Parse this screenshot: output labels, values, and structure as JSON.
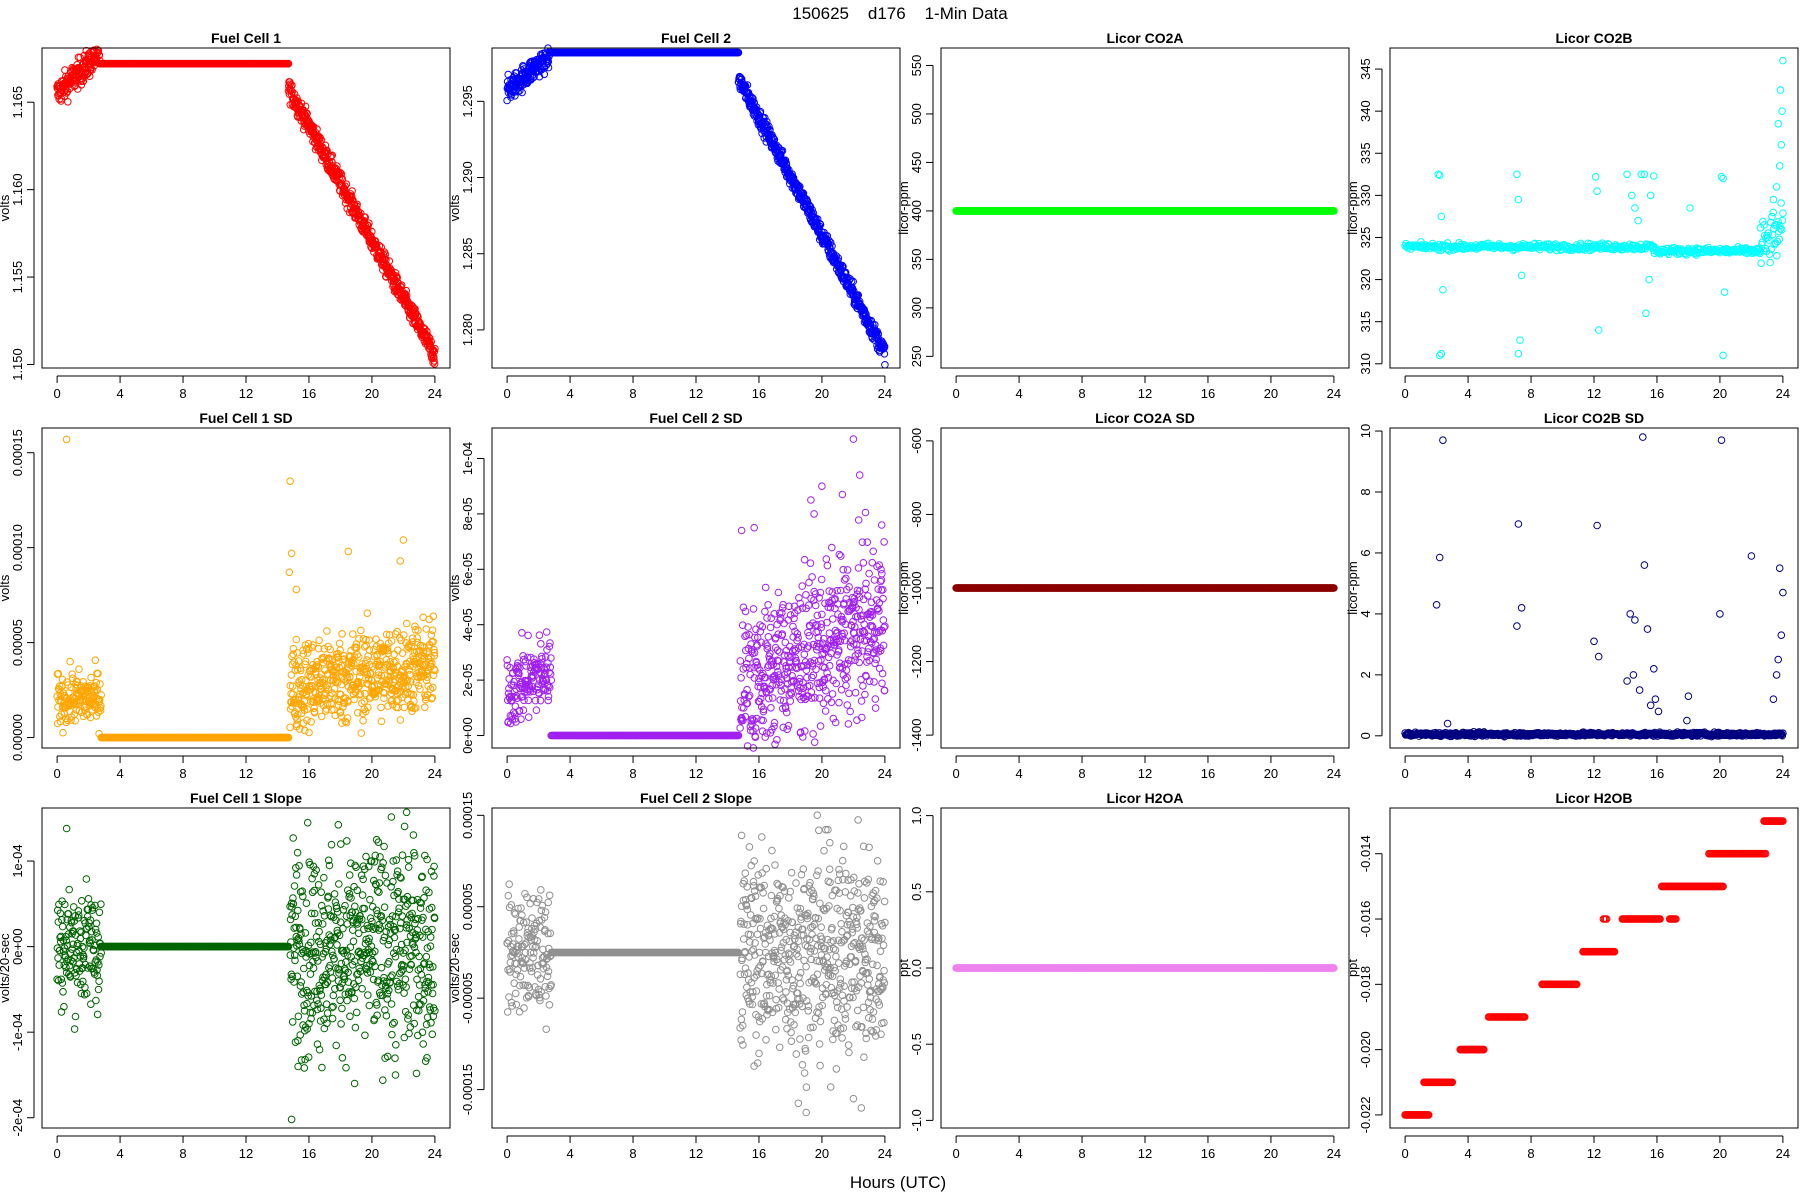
{
  "figure": {
    "title": "150625    d176    1-Min Data",
    "xlabel": "Hours (UTC)"
  },
  "chart_data": [
    {
      "type": "scatter",
      "title": "Fuel Cell 1",
      "ylabel": "volts",
      "color": "#ff0000",
      "xlim": [
        -0.96,
        24.96
      ],
      "ylim": [
        1.1498,
        1.1681
      ],
      "xticks": [
        0,
        4,
        8,
        12,
        16,
        20,
        24
      ],
      "yticks": [
        1.15,
        1.155,
        1.16,
        1.165
      ],
      "ytick_labels": [
        "1.150",
        "1.155",
        "1.160",
        "1.165"
      ],
      "series": [
        {
          "kind": "line_noise",
          "x0": 0,
          "x1": 2.7,
          "y0": 1.1655,
          "y1": 1.1678,
          "noise": 0.0004,
          "count": 160
        },
        {
          "kind": "flat",
          "x0": 2.7,
          "x1": 14.7,
          "y": 1.1672,
          "count": 240
        },
        {
          "kind": "line_noise",
          "x0": 14.7,
          "x1": 24,
          "y0": 1.1658,
          "y1": 1.1505,
          "noise": 0.0003,
          "count": 560
        }
      ]
    },
    {
      "type": "scatter",
      "title": "Fuel Cell 2",
      "ylabel": "volts",
      "color": "#0000ff",
      "xlim": [
        -0.96,
        24.96
      ],
      "ylim": [
        1.2775,
        1.2985
      ],
      "xticks": [
        0,
        4,
        8,
        12,
        16,
        20,
        24
      ],
      "yticks": [
        1.28,
        1.285,
        1.29,
        1.295
      ],
      "ytick_labels": [
        "1.280",
        "1.285",
        "1.290",
        "1.295"
      ],
      "series": [
        {
          "kind": "line_noise",
          "x0": 0,
          "x1": 2.7,
          "y0": 1.2957,
          "y1": 1.298,
          "noise": 0.0004,
          "count": 160
        },
        {
          "kind": "flat",
          "x0": 2.7,
          "x1": 14.7,
          "y": 1.2982,
          "count": 240
        },
        {
          "kind": "line_noise",
          "x0": 14.7,
          "x1": 24,
          "y0": 1.2965,
          "y1": 1.2785,
          "noise": 0.0003,
          "count": 560
        }
      ]
    },
    {
      "type": "scatter",
      "title": "Licor CO2A",
      "ylabel": "licor-ppm",
      "color": "#00ff00",
      "xlim": [
        -0.96,
        24.96
      ],
      "ylim": [
        238,
        568
      ],
      "xticks": [
        0,
        4,
        8,
        12,
        16,
        20,
        24
      ],
      "yticks": [
        250,
        300,
        350,
        400,
        450,
        500,
        550
      ],
      "ytick_labels": [
        "250",
        "300",
        "350",
        "400",
        "450",
        "500",
        "550"
      ],
      "series": [
        {
          "kind": "flat",
          "x0": 0,
          "x1": 24,
          "y": 400,
          "count": 700
        }
      ]
    },
    {
      "type": "scatter",
      "title": "Licor CO2B",
      "ylabel": "licor-ppm",
      "color": "#00ffff",
      "xlim": [
        -0.96,
        24.96
      ],
      "ylim": [
        309.5,
        347.5
      ],
      "xticks": [
        0,
        4,
        8,
        12,
        16,
        20,
        24
      ],
      "yticks": [
        310,
        315,
        320,
        325,
        330,
        335,
        340,
        345
      ],
      "ytick_labels": [
        "310",
        "315",
        "320",
        "325",
        "330",
        "335",
        "340",
        "345"
      ],
      "series": [
        {
          "kind": "line_noise",
          "x0": 0,
          "x1": 15.8,
          "y0": 323.9,
          "y1": 323.9,
          "noise": 0.2,
          "count": 300
        },
        {
          "kind": "line_noise",
          "x0": 15.8,
          "x1": 22.5,
          "y0": 323.4,
          "y1": 323.4,
          "noise": 0.2,
          "count": 150
        },
        {
          "kind": "line_noise",
          "x0": 22.5,
          "x1": 24,
          "y0": 323.6,
          "y1": 326,
          "noise": 1.5,
          "count": 40
        },
        {
          "kind": "points",
          "x": [
            2.1,
            2.2,
            2.4,
            2.3,
            2.2,
            2.3,
            7.1,
            7.2,
            7.4,
            7.3,
            7.2,
            12.1,
            12.2,
            12.3,
            14.1,
            14.4,
            14.6,
            14.8,
            15.0,
            15.2,
            15.3,
            15.5,
            15.6,
            15.8,
            18.1,
            20.1,
            20.2,
            20.3,
            20.2,
            23.4,
            23.6,
            23.8,
            23.9,
            23.95,
            24,
            23.85,
            23.7
          ],
          "y": [
            332.5,
            332.4,
            318.8,
            311.2,
            311.0,
            327.5,
            332.5,
            329.5,
            320.5,
            312.8,
            311.2,
            332.2,
            330.5,
            314.0,
            332.5,
            330.0,
            328.5,
            327.0,
            332.5,
            332.5,
            316.0,
            320.0,
            330.0,
            332.3,
            328.5,
            332.2,
            332.0,
            318.5,
            311.0,
            329.5,
            331.0,
            333.5,
            336.0,
            340.0,
            346.0,
            342.5,
            338.5
          ]
        }
      ]
    },
    {
      "type": "scatter",
      "title": "Fuel Cell 1 SD",
      "ylabel": "volts",
      "color": "#ffa500",
      "xlim": [
        -0.96,
        24.96
      ],
      "ylim": [
        -5.5e-06,
        0.000163
      ],
      "xticks": [
        0,
        4,
        8,
        12,
        16,
        20,
        24
      ],
      "yticks": [
        0,
        5e-05,
        0.0001,
        0.00015
      ],
      "ytick_labels": [
        "0.00000",
        "0.00005",
        "0.00010",
        "0.00015"
      ],
      "series": [
        {
          "kind": "line_noise",
          "x0": 0,
          "x1": 2.8,
          "y0": 2e-05,
          "y1": 2.1e-05,
          "noise": 7e-06,
          "count": 150
        },
        {
          "kind": "flat",
          "x0": 2.8,
          "x1": 14.7,
          "y": 0,
          "count": 240
        },
        {
          "kind": "line_noise",
          "x0": 14.8,
          "x1": 24,
          "y0": 2.7e-05,
          "y1": 3.8e-05,
          "noise": 1.2e-05,
          "count": 560
        },
        {
          "kind": "points",
          "x": [
            0.6,
            14.8,
            14.9,
            14.75,
            18.5,
            22.0,
            21.8,
            15.2
          ],
          "y": [
            0.000157,
            0.000135,
            9.7e-05,
            8.7e-05,
            9.8e-05,
            0.000104,
            9.3e-05,
            7.8e-05
          ]
        }
      ]
    },
    {
      "type": "scatter",
      "title": "Fuel Cell 2 SD",
      "ylabel": "volts",
      "color": "#a020f0",
      "xlim": [
        -0.96,
        24.96
      ],
      "ylim": [
        -4.5e-06,
        0.000111
      ],
      "xticks": [
        0,
        4,
        8,
        12,
        16,
        20,
        24
      ],
      "yticks": [
        0,
        2e-05,
        4e-05,
        6e-05,
        8e-05,
        0.0001
      ],
      "ytick_labels": [
        "0e+00",
        "2e-05",
        "4e-05",
        "6e-05",
        "8e-05",
        "1e-04"
      ],
      "series": [
        {
          "kind": "line_noise",
          "x0": 0,
          "x1": 2.8,
          "y0": 1.6e-05,
          "y1": 2.4e-05,
          "noise": 7e-06,
          "count": 150
        },
        {
          "kind": "flat",
          "x0": 2.8,
          "x1": 14.7,
          "y": 0,
          "count": 240
        },
        {
          "kind": "line_noise",
          "x0": 14.8,
          "x1": 24,
          "y0": 1.8e-05,
          "y1": 4.2e-05,
          "noise": 1.4e-05,
          "count": 560
        },
        {
          "kind": "points",
          "x": [
            14.9,
            15.7,
            22.0,
            20.0,
            19.3,
            21.3,
            22.4,
            23.8,
            19.5
          ],
          "y": [
            7.4e-05,
            7.5e-05,
            0.000107,
            9e-05,
            8.5e-05,
            8.7e-05,
            9.4e-05,
            7.6e-05,
            8e-05
          ]
        }
      ]
    },
    {
      "type": "scatter",
      "title": "Licor CO2A SD",
      "ylabel": "licor-ppm",
      "color": "#8b0000",
      "xlim": [
        -0.96,
        24.96
      ],
      "ylim": [
        -1435,
        -565
      ],
      "xticks": [
        0,
        4,
        8,
        12,
        16,
        20,
        24
      ],
      "yticks": [
        -1400,
        -1200,
        -1000,
        -800,
        -600
      ],
      "ytick_labels": [
        "-1400",
        "-1200",
        "-1000",
        "-800",
        "-600"
      ],
      "series": [
        {
          "kind": "flat",
          "x0": 0,
          "x1": 24,
          "y": -1000,
          "count": 700
        }
      ]
    },
    {
      "type": "scatter",
      "title": "Licor CO2B SD",
      "ylabel": "licor-ppm",
      "color": "#000080",
      "xlim": [
        -0.96,
        24.96
      ],
      "ylim": [
        -0.4,
        10.1
      ],
      "xticks": [
        0,
        4,
        8,
        12,
        16,
        20,
        24
      ],
      "yticks": [
        0,
        2,
        4,
        6,
        8,
        10
      ],
      "ytick_labels": [
        "0",
        "2",
        "4",
        "6",
        "8",
        "10"
      ],
      "series": [
        {
          "kind": "line_noise",
          "x0": 0,
          "x1": 24,
          "y0": 0.05,
          "y1": 0.05,
          "noise": 0.03,
          "count": 700
        },
        {
          "kind": "points",
          "x": [
            2.0,
            2.2,
            2.4,
            7.1,
            7.2,
            7.4,
            12.0,
            12.2,
            12.3,
            14.1,
            14.3,
            14.5,
            14.6,
            15.1,
            15.2,
            15.4,
            15.6,
            15.8,
            16.1,
            18.0,
            20.0,
            20.1,
            22.0,
            23.4,
            23.6,
            23.8,
            23.9,
            24.0,
            23.7,
            2.7,
            14.9,
            15.9,
            17.9
          ],
          "y": [
            4.3,
            5.85,
            9.7,
            3.6,
            6.95,
            4.2,
            3.1,
            6.9,
            2.6,
            1.8,
            4.0,
            2.0,
            3.8,
            9.8,
            5.6,
            3.5,
            1.0,
            2.2,
            0.8,
            1.3,
            4.0,
            9.7,
            5.9,
            1.2,
            2.0,
            5.5,
            3.3,
            4.7,
            2.5,
            0.4,
            1.5,
            1.2,
            0.5
          ]
        }
      ]
    },
    {
      "type": "scatter",
      "title": "Fuel Cell 1 Slope",
      "ylabel": "volts/20-sec",
      "color": "#006400",
      "xlim": [
        -0.96,
        24.96
      ],
      "ylim": [
        -0.000212,
        0.000162
      ],
      "xticks": [
        0,
        4,
        8,
        12,
        16,
        20,
        24
      ],
      "yticks": [
        -0.0002,
        -0.0001,
        0,
        0.0001
      ],
      "ytick_labels": [
        "-2e-04",
        "-1e-04",
        "0e+00",
        "1e-04"
      ],
      "series": [
        {
          "kind": "line_noise",
          "x0": 0,
          "x1": 2.8,
          "y0": 0,
          "y1": 0,
          "noise": 3.5e-05,
          "count": 150
        },
        {
          "kind": "flat",
          "x0": 2.8,
          "x1": 14.7,
          "y": 0,
          "count": 240
        },
        {
          "kind": "line_noise",
          "x0": 14.8,
          "x1": 24,
          "y0": 0,
          "y1": 0,
          "noise": 6e-05,
          "count": 560
        },
        {
          "kind": "points",
          "x": [
            0.6,
            14.9,
            22.2,
            20.3,
            18.9,
            21.5,
            15.3,
            23.5
          ],
          "y": [
            0.000138,
            -0.000202,
            0.000157,
            0.000125,
            -0.00016,
            -0.00015,
            -0.00011,
            -0.00013
          ]
        }
      ]
    },
    {
      "type": "scatter",
      "title": "Fuel Cell 2 Slope",
      "ylabel": "volts/20-sec",
      "color": "#909090",
      "xlim": [
        -0.96,
        24.96
      ],
      "ylim": [
        -0.000192,
        0.000158
      ],
      "xticks": [
        0,
        4,
        8,
        12,
        16,
        20,
        24
      ],
      "yticks": [
        -0.00015,
        -5e-05,
        5e-05,
        0.00015
      ],
      "ytick_labels": [
        "-0.00015",
        "-0.00005",
        "0.00005",
        "0.00015"
      ],
      "series": [
        {
          "kind": "line_noise",
          "x0": 0,
          "x1": 2.8,
          "y0": 0,
          "y1": 0,
          "noise": 3.2e-05,
          "count": 150
        },
        {
          "kind": "flat",
          "x0": 2.8,
          "x1": 14.7,
          "y": 0,
          "count": 240
        },
        {
          "kind": "line_noise",
          "x0": 14.8,
          "x1": 24,
          "y0": 0,
          "y1": 0,
          "noise": 5.5e-05,
          "count": 560
        },
        {
          "kind": "points",
          "x": [
            14.9,
            22.3,
            18.5,
            19.0,
            22.0,
            22.5,
            23.0,
            15.7,
            20.5
          ],
          "y": [
            0.000128,
            0.000145,
            -0.000165,
            -0.000175,
            -0.00016,
            -0.00017,
            0.000115,
            0.0001,
            0.00012
          ]
        }
      ]
    },
    {
      "type": "scatter",
      "title": "Licor H2OA",
      "ylabel": "ppt",
      "color": "#ee82ee",
      "xlim": [
        -0.96,
        24.96
      ],
      "ylim": [
        -1.05,
        1.05
      ],
      "xticks": [
        0,
        4,
        8,
        12,
        16,
        20,
        24
      ],
      "yticks": [
        -1.0,
        -0.5,
        0.0,
        0.5,
        1.0
      ],
      "ytick_labels": [
        "-1.0",
        "-0.5",
        "0.0",
        "0.5",
        "1.0"
      ],
      "series": [
        {
          "kind": "flat",
          "x0": 0,
          "x1": 24,
          "y": 0,
          "count": 700
        }
      ]
    },
    {
      "type": "scatter",
      "title": "Licor H2OB",
      "ylabel": "ppt",
      "color": "#ff0000",
      "xlim": [
        -0.96,
        24.96
      ],
      "ylim": [
        -0.0224,
        -0.0126
      ],
      "xticks": [
        0,
        4,
        8,
        12,
        16,
        20,
        24
      ],
      "yticks": [
        -0.022,
        -0.02,
        -0.018,
        -0.016,
        -0.014
      ],
      "ytick_labels": [
        "-0.022",
        "-0.020",
        "-0.018",
        "-0.016",
        "-0.014"
      ],
      "series": [
        {
          "kind": "flat",
          "x0": 0,
          "x1": 1.5,
          "y": -0.022,
          "count": 30
        },
        {
          "kind": "flat",
          "x0": 1.2,
          "x1": 3.0,
          "y": -0.021,
          "count": 35
        },
        {
          "kind": "flat",
          "x0": 3.5,
          "x1": 5.0,
          "y": -0.02,
          "count": 30
        },
        {
          "kind": "flat",
          "x0": 5.3,
          "x1": 7.6,
          "y": -0.019,
          "count": 40
        },
        {
          "kind": "flat",
          "x0": 8.7,
          "x1": 10.9,
          "y": -0.018,
          "count": 40
        },
        {
          "kind": "flat",
          "x0": 11.3,
          "x1": 13.3,
          "y": -0.017,
          "count": 40
        },
        {
          "kind": "flat",
          "x0": 12.6,
          "x1": 12.8,
          "y": -0.016,
          "count": 4
        },
        {
          "kind": "flat",
          "x0": 13.8,
          "x1": 16.2,
          "y": -0.016,
          "count": 45
        },
        {
          "kind": "flat",
          "x0": 16.8,
          "x1": 17.2,
          "y": -0.016,
          "count": 8
        },
        {
          "kind": "flat",
          "x0": 16.3,
          "x1": 20.2,
          "y": -0.015,
          "count": 70
        },
        {
          "kind": "flat",
          "x0": 19.3,
          "x1": 22.9,
          "y": -0.014,
          "count": 60
        },
        {
          "kind": "flat",
          "x0": 22.8,
          "x1": 24.0,
          "y": -0.013,
          "count": 25
        }
      ]
    }
  ]
}
